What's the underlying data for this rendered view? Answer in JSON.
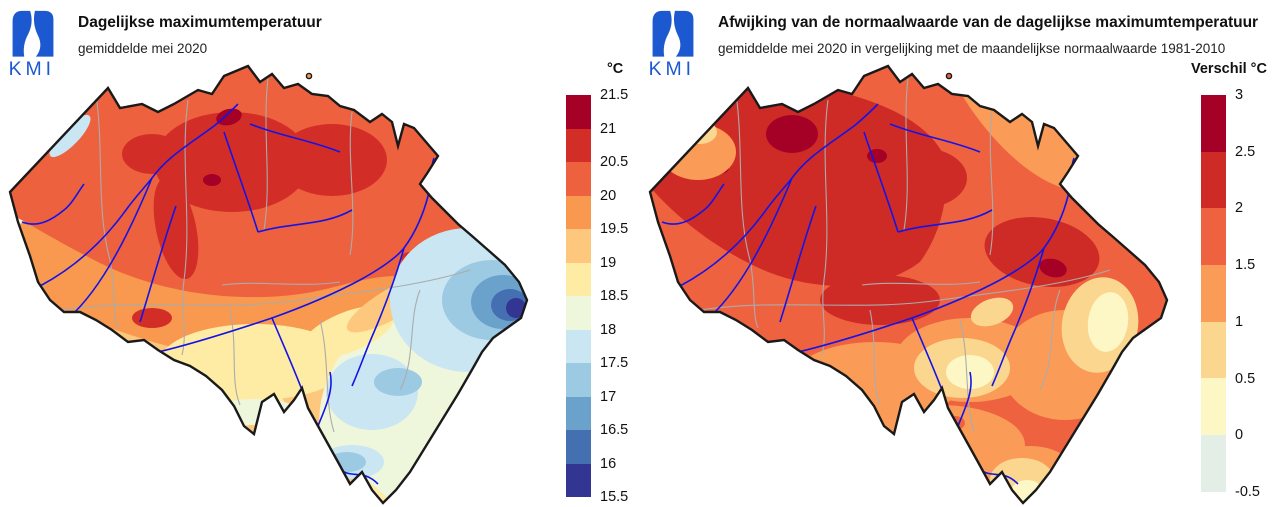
{
  "colors": {
    "logo_blue": "#1C59D1",
    "outline": "#1A1A1A",
    "river": "#1414E6",
    "province_border": "#ABABAB",
    "temp_scale": [
      "#A50026",
      "#D32D27",
      "#ED613E",
      "#F8994F",
      "#FDC87D",
      "#FEECA4",
      "#EEF6DC",
      "#C9E6F2",
      "#9CCAE3",
      "#6BA2CC",
      "#4470B2",
      "#333592"
    ],
    "anom_scale": [
      "#A50026",
      "#CE2B27",
      "#EE6240",
      "#FA9C57",
      "#FBD68F",
      "#FDF7C6",
      "#E3EEE6"
    ]
  },
  "panels": [
    {
      "logo_text": "KMI",
      "title": "Dagelijkse maximumtemperatuur",
      "subtitle": "gemiddelde mei 2020",
      "legend_title": "°C",
      "legend_labels": [
        "21.5",
        "21",
        "20.5",
        "20",
        "19.5",
        "19",
        "18.5",
        "18",
        "17.5",
        "17",
        "16.5",
        "16",
        "15.5"
      ],
      "legend_colors": [
        "#A50026",
        "#D32D27",
        "#ED613E",
        "#F8994F",
        "#FDC87D",
        "#FEECA4",
        "#EEF6DC",
        "#C9E6F2",
        "#9CCAE3",
        "#6BA2CC",
        "#4470B2",
        "#333592"
      ]
    },
    {
      "logo_text": "KMI",
      "title": "Afwijking van de normaalwaarde van de dagelijkse maximumtemperatuur",
      "subtitle": "gemiddelde mei 2020 in vergelijking met de maandelijkse normaalwaarde 1981-2010",
      "legend_title": "Verschil °C",
      "legend_labels": [
        "3",
        "2.5",
        "2",
        "1.5",
        "1",
        "0.5",
        "0",
        "-0.5"
      ],
      "legend_colors": [
        "#A50026",
        "#CE2B27",
        "#EE6240",
        "#FA9C57",
        "#FBD68F",
        "#FDF7C6",
        "#E3EEE6"
      ]
    }
  ],
  "chart_data": [
    {
      "type": "heatmap",
      "title": "Dagelijkse maximumtemperatuur",
      "subtitle": "gemiddelde mei 2020",
      "region": "Belgium",
      "legend_title": "°C",
      "scale_ticks": [
        21.5,
        21,
        20.5,
        20,
        19.5,
        19,
        18.5,
        18,
        17.5,
        17,
        16.5,
        16,
        15.5
      ],
      "scale_colors": [
        "#A50026",
        "#D32D27",
        "#ED613E",
        "#F8994F",
        "#FDC87D",
        "#FEECA4",
        "#EEF6DC",
        "#C9E6F2",
        "#9CCAE3",
        "#6BA2CC",
        "#4470B2",
        "#333592"
      ],
      "pattern": "warmest 20.5-21.5 °C over central and northern Belgium; coolest 15.5-17 °C over the eastern High Fens; 17-19 °C across the south-eastern Ardennes and along the coast"
    },
    {
      "type": "heatmap",
      "title": "Afwijking van de normaalwaarde van de dagelijkse maximumtemperatuur",
      "subtitle": "gemiddelde mei 2020 in vergelijking met de maandelijkse normaalwaarde 1981-2010",
      "region": "Belgium",
      "legend_title": "Verschil °C",
      "scale_ticks": [
        3,
        2.5,
        2,
        1.5,
        1,
        0.5,
        0,
        -0.5
      ],
      "scale_colors": [
        "#A50026",
        "#CE2B27",
        "#EE6240",
        "#FA9C57",
        "#FBD68F",
        "#FDF7C6",
        "#E3EEE6"
      ],
      "pattern": "anomalies of +2 to +3 °C over Flanders and around Liège; +0.5 to +1.5 °C in the southern Ardennes, the far south-east and the far south tip"
    }
  ]
}
